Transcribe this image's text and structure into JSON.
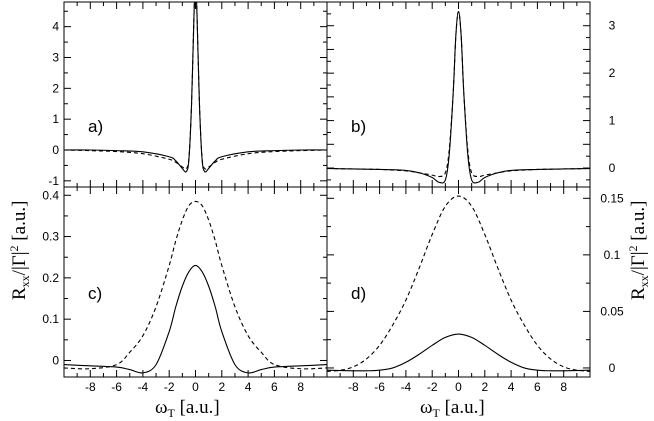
{
  "figure": {
    "x_title": {
      "symbol": "ω",
      "sub": "T",
      "unit": " [a.u.]"
    },
    "y_title": {
      "symbol": "R",
      "sub": "xx",
      "mid": "/|Γ|",
      "sup": "2",
      "unit": " [a.u.]"
    }
  },
  "chart_data": [
    {
      "type": "line",
      "panel": "a)",
      "xlim": [
        -10,
        10
      ],
      "ylim": [
        -1.2,
        4.8
      ],
      "y_ticks": [
        -1,
        0,
        1,
        2,
        3,
        4
      ],
      "y_axis_side": "left",
      "x_ticks": [
        -8,
        -6,
        -4,
        -2,
        0,
        2,
        4,
        6,
        8
      ],
      "x_tick_labels_shown": false,
      "series": [
        {
          "style": "solid",
          "x": [
            -10,
            -8,
            -6,
            -4,
            -2,
            -1.5,
            -1,
            -0.7,
            -0.5,
            -0.3,
            -0.1,
            0,
            0.1,
            0.3,
            0.5,
            0.7,
            1,
            1.5,
            2,
            4,
            6,
            8,
            10
          ],
          "y": [
            0,
            0,
            -0.02,
            -0.06,
            -0.22,
            -0.35,
            -0.6,
            -0.7,
            -0.3,
            1.5,
            4.6,
            5.2,
            4.6,
            1.5,
            -0.3,
            -0.7,
            -0.6,
            -0.35,
            -0.22,
            -0.06,
            -0.02,
            0,
            0
          ]
        },
        {
          "style": "dashed",
          "x": [
            -10,
            -8,
            -6,
            -4,
            -2,
            -1.5,
            -1,
            -0.7,
            -0.5,
            -0.3,
            -0.1,
            0,
            0.1,
            0.3,
            0.5,
            0.7,
            1,
            1.5,
            2,
            4,
            6,
            8,
            10
          ],
          "y": [
            0,
            -0.02,
            -0.05,
            -0.12,
            -0.3,
            -0.4,
            -0.55,
            -0.6,
            -0.25,
            1.5,
            4.6,
            5.2,
            4.6,
            1.5,
            -0.25,
            -0.6,
            -0.55,
            -0.4,
            -0.3,
            -0.12,
            -0.05,
            -0.02,
            0
          ]
        }
      ]
    },
    {
      "type": "line",
      "panel": "b)",
      "xlim": [
        -10,
        10
      ],
      "ylim": [
        -0.4,
        3.5
      ],
      "y_ticks": [
        0,
        0.5,
        1,
        1.5,
        2,
        2.5,
        3
      ],
      "y_tick_labels": [
        "0",
        "",
        "1",
        "",
        "2",
        "",
        "3"
      ],
      "y_axis_side": "right",
      "x_ticks": [
        -8,
        -6,
        -4,
        -2,
        0,
        2,
        4,
        6,
        8
      ],
      "x_tick_labels_shown": false,
      "series": [
        {
          "style": "solid",
          "x": [
            -10,
            -8,
            -6,
            -4,
            -3,
            -2,
            -1.5,
            -1,
            -0.7,
            -0.4,
            -0.2,
            0,
            0.2,
            0.4,
            0.7,
            1,
            1.5,
            2,
            3,
            4,
            6,
            8,
            10
          ],
          "y": [
            -0.01,
            -0.02,
            -0.03,
            -0.05,
            -0.1,
            -0.2,
            -0.3,
            -0.25,
            0.3,
            1.6,
            2.8,
            3.3,
            2.8,
            1.6,
            0.3,
            -0.25,
            -0.3,
            -0.2,
            -0.1,
            -0.05,
            -0.03,
            -0.02,
            -0.01
          ]
        },
        {
          "style": "dashed",
          "x": [
            -10,
            -8,
            -6,
            -4,
            -3,
            -2,
            -1.5,
            -1,
            -0.7,
            -0.4,
            -0.2,
            0,
            0.2,
            0.4,
            0.7,
            1,
            1.5,
            2,
            3,
            4,
            6,
            8,
            10
          ],
          "y": [
            -0.01,
            -0.02,
            -0.03,
            -0.06,
            -0.1,
            -0.15,
            -0.18,
            -0.1,
            0.4,
            1.6,
            2.8,
            3.3,
            2.8,
            1.6,
            0.4,
            -0.1,
            -0.18,
            -0.15,
            -0.1,
            -0.06,
            -0.03,
            -0.02,
            -0.01
          ]
        }
      ]
    },
    {
      "type": "line",
      "panel": "c)",
      "xlim": [
        -10,
        10
      ],
      "ylim": [
        -0.04,
        0.42
      ],
      "y_ticks": [
        0,
        0.1,
        0.2,
        0.3,
        0.4
      ],
      "y_axis_side": "left",
      "x_ticks": [
        -8,
        -6,
        -4,
        -2,
        0,
        2,
        4,
        6,
        8
      ],
      "x_tick_labels_shown": true,
      "series": [
        {
          "style": "solid",
          "x": [
            -10,
            -8,
            -6,
            -5,
            -4,
            -3,
            -2,
            -1.5,
            -1,
            -0.5,
            0,
            0.5,
            1,
            1.5,
            2,
            3,
            4,
            5,
            6,
            8,
            10
          ],
          "y": [
            -0.01,
            -0.013,
            -0.016,
            -0.022,
            -0.03,
            -0.01,
            0.07,
            0.13,
            0.18,
            0.215,
            0.23,
            0.215,
            0.18,
            0.13,
            0.07,
            -0.01,
            -0.03,
            -0.022,
            -0.016,
            -0.013,
            -0.01
          ]
        },
        {
          "style": "dashed",
          "x": [
            -10,
            -8,
            -6,
            -5,
            -4,
            -3,
            -2,
            -1.5,
            -1,
            -0.5,
            0,
            0.5,
            1,
            1.5,
            2,
            3,
            4,
            5,
            6,
            8,
            10
          ],
          "y": [
            -0.018,
            -0.02,
            -0.01,
            0.02,
            0.06,
            0.13,
            0.23,
            0.29,
            0.34,
            0.375,
            0.385,
            0.375,
            0.34,
            0.29,
            0.23,
            0.13,
            0.06,
            0.02,
            -0.01,
            -0.02,
            -0.018
          ]
        }
      ]
    },
    {
      "type": "line",
      "panel": "d)",
      "xlim": [
        -10,
        10
      ],
      "ylim": [
        -0.008,
        0.16
      ],
      "y_ticks": [
        0,
        0.05,
        0.1,
        0.15
      ],
      "y_axis_side": "right",
      "x_ticks": [
        -8,
        -6,
        -4,
        -2,
        0,
        2,
        4,
        6,
        8
      ],
      "x_tick_labels_shown": true,
      "series": [
        {
          "style": "solid",
          "x": [
            -10,
            -8,
            -7,
            -6,
            -5,
            -4,
            -3,
            -2,
            -1,
            0,
            1,
            2,
            3,
            4,
            5,
            6,
            7,
            8,
            10
          ],
          "y": [
            -0.002,
            -0.0025,
            -0.0025,
            -0.002,
            0,
            0.005,
            0.012,
            0.02,
            0.027,
            0.03,
            0.027,
            0.02,
            0.012,
            0.005,
            0,
            -0.002,
            -0.0025,
            -0.0025,
            -0.002
          ]
        },
        {
          "style": "dashed",
          "x": [
            -10,
            -9,
            -8,
            -7,
            -6,
            -5,
            -4,
            -3,
            -2,
            -1,
            0,
            1,
            2,
            3,
            4,
            5,
            6,
            7,
            8,
            9,
            10
          ],
          "y": [
            -0.003,
            -0.002,
            0.001,
            0.008,
            0.02,
            0.038,
            0.06,
            0.088,
            0.118,
            0.143,
            0.152,
            0.143,
            0.118,
            0.088,
            0.06,
            0.038,
            0.02,
            0.008,
            0.001,
            -0.002,
            -0.003
          ]
        }
      ]
    }
  ]
}
